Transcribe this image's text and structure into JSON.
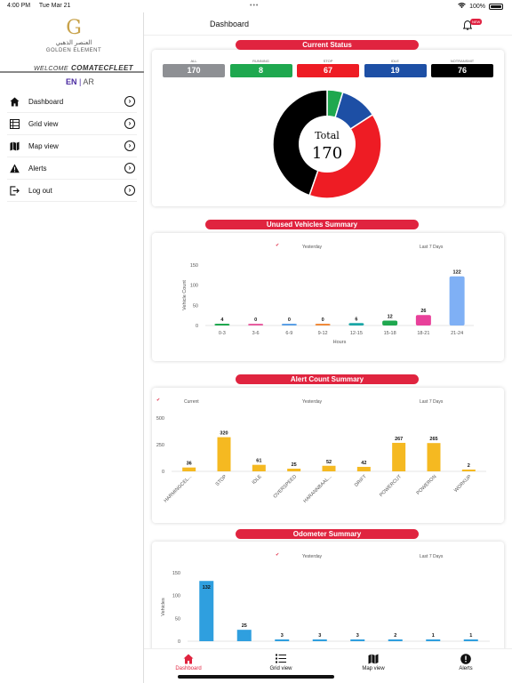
{
  "statusbar": {
    "time": "4:00 PM",
    "date": "Tue Mar 21",
    "battery": "100%"
  },
  "sidebar": {
    "logo_arabic": "العنصر الذهبي",
    "logo_english": "GOLDEN ELEMENT",
    "welcome_prefix": "WELCOME",
    "welcome_user": "COMATECFLEET",
    "lang_en": "EN",
    "lang_sep": "|",
    "lang_ar": "AR",
    "items": [
      {
        "label": "Dashboard",
        "icon": "home-icon"
      },
      {
        "label": "Grid view",
        "icon": "grid-list-icon"
      },
      {
        "label": "Map view",
        "icon": "map-icon"
      },
      {
        "label": "Alerts",
        "icon": "warning-icon"
      },
      {
        "label": "Log out",
        "icon": "logout-icon"
      }
    ]
  },
  "header": {
    "title": "Dashboard",
    "notification_badge": "NEW"
  },
  "current_status": {
    "title": "Current Status",
    "cells": [
      {
        "caption": "ALL",
        "value": "170",
        "color": "#8e9094"
      },
      {
        "caption": "RUNNING",
        "value": "8",
        "color": "#1fa84f"
      },
      {
        "caption": "STOP",
        "value": "67",
        "color": "#ee1c24"
      },
      {
        "caption": "IDLE",
        "value": "19",
        "color": "#1d4fa5"
      },
      {
        "caption": "NOTRANSMIT",
        "value": "76",
        "color": "#000000"
      }
    ],
    "donut_center_label": "Total",
    "donut_center_value": "170"
  },
  "unused_summary": {
    "title": "Unused Vehicles Summary",
    "legend_yesterday": "Yesterday",
    "legend_last7": "Last 7 Days",
    "check": "✔",
    "ylabel": "Vehicle Count",
    "xlabel": "Hours"
  },
  "alert_summary": {
    "title": "Alert Count Summary",
    "legend_current": "Current",
    "legend_yesterday": "Yesterday",
    "legend_last7": "Last 7 Days",
    "check": "✔"
  },
  "odometer_summary": {
    "title": "Odometer Summary",
    "legend_yesterday": "Yesterday",
    "legend_last7": "Last 7 Days",
    "check": "✔",
    "ylabel": "Vehicles"
  },
  "tabbar": {
    "tabs": [
      {
        "label": "Dashboard",
        "icon": "home-icon"
      },
      {
        "label": "Grid view",
        "icon": "list-icon"
      },
      {
        "label": "Map view",
        "icon": "map-icon"
      },
      {
        "label": "Alerts",
        "icon": "alert-icon"
      }
    ]
  },
  "chart_data": [
    {
      "type": "pie",
      "title": "Current Status",
      "categories": [
        "RUNNING",
        "IDLE",
        "STOP",
        "NOTRANSMIT"
      ],
      "values": [
        8,
        19,
        67,
        76
      ],
      "colors": [
        "#1fa84f",
        "#1d4fa5",
        "#ee1c24",
        "#000000"
      ]
    },
    {
      "type": "bar",
      "title": "Unused Vehicles Summary",
      "categories": [
        "0-3",
        "3-6",
        "6-9",
        "9-12",
        "12-15",
        "15-18",
        "18-21",
        "21-24"
      ],
      "values": [
        4,
        0,
        0,
        0,
        6,
        12,
        26,
        122
      ],
      "colors": [
        "#1fa84f",
        "#e85ea0",
        "#5ba0e6",
        "#f08a3a",
        "#1aa6a6",
        "#1fa84f",
        "#e8409a",
        "#7fb0f5"
      ],
      "xlabel": "Hours",
      "ylabel": "Vehicle Count",
      "yticks": [
        0,
        50,
        100,
        150
      ],
      "ylim": [
        0,
        150
      ]
    },
    {
      "type": "bar",
      "title": "Alert Count Summary",
      "categories": [
        "HARMINGCEL...",
        "STOP",
        "IDLE",
        "OVERSPEED",
        "HARANNBAAL...",
        "DRIFT",
        "POWERCUT",
        "POWERON",
        "WORKUP"
      ],
      "values": [
        36,
        320,
        61,
        25,
        52,
        42,
        267,
        265,
        2
      ],
      "color": "#f5b921",
      "yticks": [
        0,
        250,
        500
      ],
      "ylim": [
        0,
        500
      ]
    },
    {
      "type": "bar",
      "title": "Odometer Summary",
      "categories": [
        "",
        "",
        "",
        "",
        "",
        "",
        "",
        ""
      ],
      "values": [
        132,
        25,
        3,
        3,
        3,
        2,
        1,
        1
      ],
      "color": "#2f9fdf",
      "ylabel": "Vehicles",
      "yticks": [
        0,
        50,
        100,
        150
      ],
      "ylim": [
        0,
        150
      ]
    }
  ]
}
